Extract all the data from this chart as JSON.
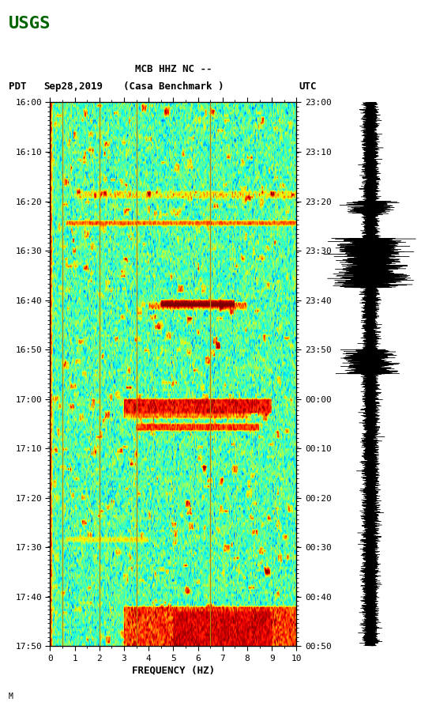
{
  "title_line1": "MCB HHZ NC --",
  "title_line2": "(Casa Benchmark )",
  "left_label": "PDT",
  "date_label": "Sep28,2019",
  "right_label": "UTC",
  "xlabel": "FREQUENCY (HZ)",
  "freq_min": 0,
  "freq_max": 10,
  "freq_ticks": [
    0,
    1,
    2,
    3,
    4,
    5,
    6,
    7,
    8,
    9,
    10
  ],
  "time_labels_left": [
    "16:00",
    "16:10",
    "16:20",
    "16:30",
    "16:40",
    "16:50",
    "17:00",
    "17:10",
    "17:20",
    "17:30",
    "17:40",
    "17:50"
  ],
  "time_labels_right": [
    "23:00",
    "23:10",
    "23:20",
    "23:30",
    "23:40",
    "23:50",
    "00:00",
    "00:10",
    "00:20",
    "00:30",
    "00:40",
    "00:50"
  ],
  "bg_color": "#ffffff",
  "spectrogram_cmap": "jet",
  "vertical_lines_freq": [
    0.5,
    2.0,
    3.5,
    6.5
  ],
  "vertical_line_color": "#b8860b",
  "figsize": [
    5.52,
    8.93
  ],
  "dpi": 100,
  "usgs_color": "#006400",
  "n_time": 220,
  "n_freq": 300
}
